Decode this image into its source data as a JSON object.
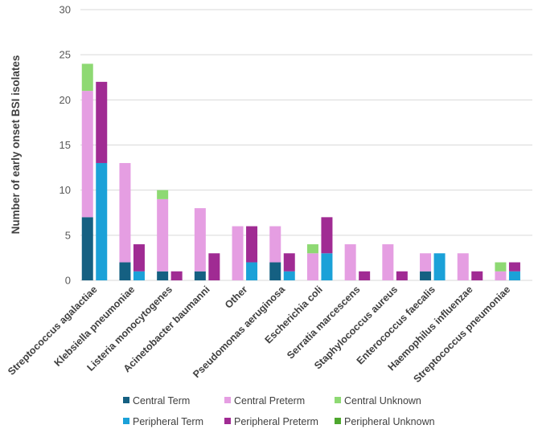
{
  "chart_data": {
    "type": "bar",
    "stacked": true,
    "title": "",
    "xlabel": "",
    "ylabel": "Number of early onset BSI isolates",
    "ylim": [
      0,
      30
    ],
    "yticks": [
      0,
      5,
      10,
      15,
      20,
      25,
      30
    ],
    "grid": true,
    "legend_position": "bottom",
    "categories": [
      "Streptococcus agalactiae",
      "Klebsiella pneumoniae",
      "Listeria monocytogenes",
      "Acinetobacter baumanni",
      "Other",
      "Pseudomonas aeruginosa",
      "Escherichia coli",
      "Serratia marcescens",
      "Staphylococcus aureus",
      "Enterococcus faecalis",
      "Haemophilus influenzae",
      "Streptococcus pneumoniae"
    ],
    "groups": [
      {
        "name": "Central",
        "series": [
          {
            "name": "Central Term",
            "color": "#156082",
            "values": [
              7,
              2,
              1,
              1,
              0,
              2,
              0,
              0,
              0,
              1,
              0,
              0
            ]
          },
          {
            "name": "Central Preterm",
            "color": "#e59ee2",
            "values": [
              14,
              11,
              8,
              7,
              6,
              4,
              3,
              4,
              4,
              2,
              3,
              1
            ]
          },
          {
            "name": "Central Unknown",
            "color": "#8ed973",
            "values": [
              3,
              0,
              1,
              0,
              0,
              0,
              1,
              0,
              0,
              0,
              0,
              1
            ]
          }
        ]
      },
      {
        "name": "Peripheral",
        "series": [
          {
            "name": "Peripheral Term",
            "color": "#1ba1d8",
            "values": [
              13,
              1,
              0,
              0,
              2,
              1,
              3,
              0,
              0,
              3,
              0,
              1
            ]
          },
          {
            "name": "Peripheral Preterm",
            "color": "#a02b93",
            "values": [
              9,
              3,
              1,
              3,
              4,
              2,
              4,
              1,
              1,
              0,
              1,
              1
            ]
          },
          {
            "name": "Peripheral Unknown",
            "color": "#4ea72e",
            "values": [
              0,
              0,
              0,
              0,
              0,
              0,
              0,
              0,
              0,
              0,
              0,
              0
            ]
          }
        ]
      }
    ],
    "legend": [
      [
        "Central Term",
        "Central Preterm",
        "Central Unknown"
      ],
      [
        "Peripheral Term",
        "Peripheral Preterm",
        "Peripheral Unknown"
      ]
    ]
  }
}
